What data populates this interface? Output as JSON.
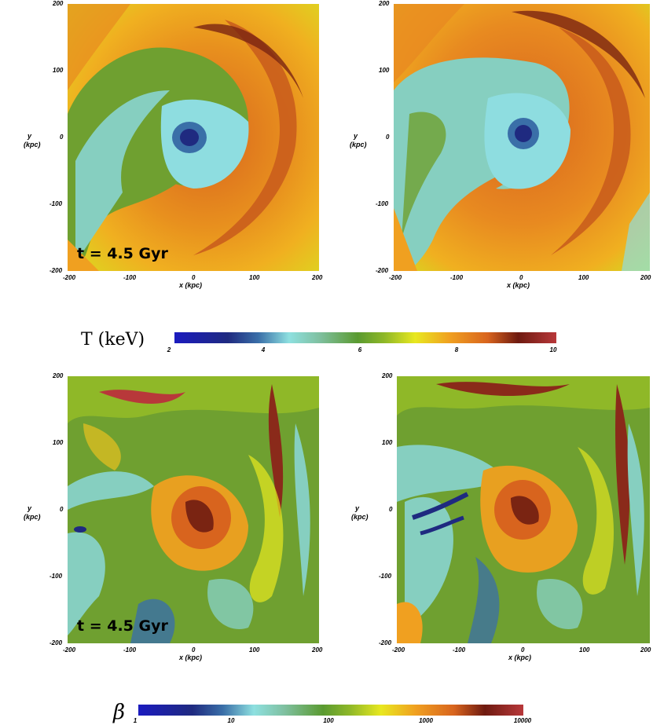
{
  "panels": [
    {
      "id": "temp-left",
      "field": "temperature",
      "stamp": "t = 4.5 Gyr"
    },
    {
      "id": "temp-right",
      "field": "temperature",
      "stamp": ""
    },
    {
      "id": "beta-left",
      "field": "beta",
      "stamp": "t = 4.5 Gyr"
    },
    {
      "id": "beta-right",
      "field": "beta",
      "stamp": ""
    }
  ],
  "axes": {
    "xlabel": "x (kpc)",
    "ylabel_line1": "y",
    "ylabel_line2": "(kpc)",
    "x_ticks": [
      "-200",
      "-100",
      "0",
      "100",
      "200"
    ],
    "y_ticks": [
      "200",
      "100",
      "0",
      "-100",
      "-200"
    ],
    "x_range": [
      -200,
      200
    ],
    "y_range": [
      -200,
      200
    ]
  },
  "colorbars": {
    "temperature": {
      "title": "T (keV)",
      "ticks": [
        "2",
        "4",
        "6",
        "8",
        "10"
      ],
      "range": [
        2,
        10
      ],
      "scale": "linear"
    },
    "beta": {
      "title": "β",
      "ticks": [
        "1",
        "10",
        "100",
        "1000",
        "10000"
      ],
      "range": [
        1,
        10000
      ],
      "scale": "log"
    }
  },
  "colormap": [
    "#1b1bbf",
    "#1f2a80",
    "#3a6fa8",
    "#8ee0e0",
    "#7fc0a0",
    "#5a9a30",
    "#8fb828",
    "#e8e820",
    "#f0a020",
    "#d8641e",
    "#6e1a10",
    "#b8383a"
  ]
}
